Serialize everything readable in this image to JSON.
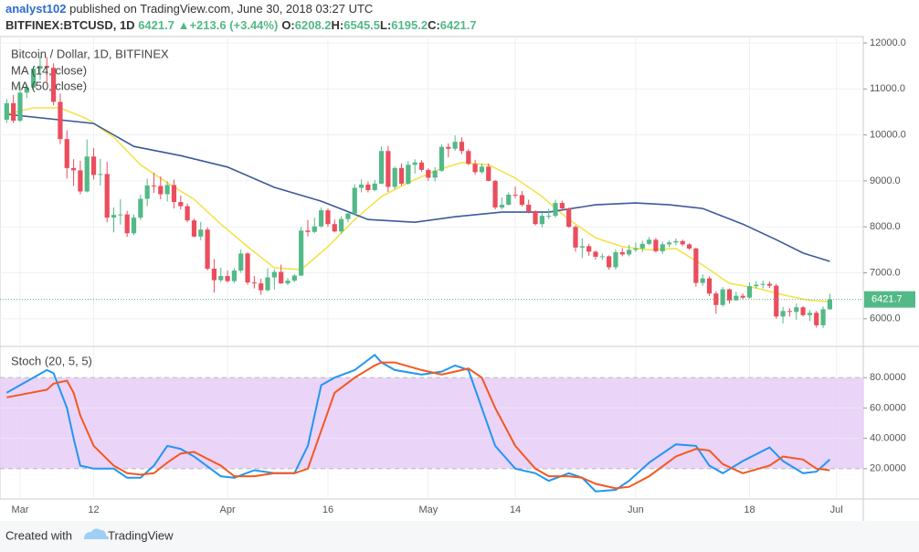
{
  "header": {
    "author": "analyst102",
    "published": "published on TradingView.com, June 30, 2018 03:27 UTC",
    "symbol": "BITFINEX:BTCUSD, 1D",
    "last": "6421.7",
    "arrow": "▲",
    "change": "+213.6 (+3.44%)",
    "ohlc": [
      {
        "label": "O:",
        "value": "6208.2"
      },
      {
        "label": "H:",
        "value": "6545.5"
      },
      {
        "label": "L:",
        "value": "6195.2"
      },
      {
        "label": "C:",
        "value": "6421.7"
      }
    ]
  },
  "footer": {
    "text": "Created with",
    "brand": "TradingView"
  },
  "chart_data": [
    {
      "type": "candlestick",
      "title": "Bitcoin / Dollar, 1D, BITFINEX",
      "up_color": "#53b987",
      "down_color": "#eb4d5c",
      "x": [
        "2018-02-27",
        "2018-02-28",
        "2018-03-01",
        "2018-03-02",
        "2018-03-03",
        "2018-03-04",
        "2018-03-05",
        "2018-03-06",
        "2018-03-07",
        "2018-03-08",
        "2018-03-09",
        "2018-03-10",
        "2018-03-11",
        "2018-03-12",
        "2018-03-13",
        "2018-03-14",
        "2018-03-15",
        "2018-03-16",
        "2018-03-17",
        "2018-03-18",
        "2018-03-19",
        "2018-03-20",
        "2018-03-21",
        "2018-03-22",
        "2018-03-23",
        "2018-03-24",
        "2018-03-25",
        "2018-03-26",
        "2018-03-27",
        "2018-03-28",
        "2018-03-29",
        "2018-03-30",
        "2018-03-31",
        "2018-04-01",
        "2018-04-02",
        "2018-04-03",
        "2018-04-04",
        "2018-04-05",
        "2018-04-06",
        "2018-04-07",
        "2018-04-08",
        "2018-04-09",
        "2018-04-10",
        "2018-04-11",
        "2018-04-12",
        "2018-04-13",
        "2018-04-14",
        "2018-04-15",
        "2018-04-16",
        "2018-04-17",
        "2018-04-18",
        "2018-04-19",
        "2018-04-20",
        "2018-04-21",
        "2018-04-22",
        "2018-04-23",
        "2018-04-24",
        "2018-04-25",
        "2018-04-26",
        "2018-04-27",
        "2018-04-28",
        "2018-04-29",
        "2018-04-30",
        "2018-05-01",
        "2018-05-02",
        "2018-05-03",
        "2018-05-04",
        "2018-05-05",
        "2018-05-06",
        "2018-05-07",
        "2018-05-08",
        "2018-05-09",
        "2018-05-10",
        "2018-05-11",
        "2018-05-12",
        "2018-05-13",
        "2018-05-14",
        "2018-05-15",
        "2018-05-16",
        "2018-05-17",
        "2018-05-18",
        "2018-05-19",
        "2018-05-20",
        "2018-05-21",
        "2018-05-22",
        "2018-05-23",
        "2018-05-24",
        "2018-05-25",
        "2018-05-26",
        "2018-05-27",
        "2018-05-28",
        "2018-05-29",
        "2018-05-30",
        "2018-05-31",
        "2018-06-01",
        "2018-06-02",
        "2018-06-03",
        "2018-06-04",
        "2018-06-05",
        "2018-06-06",
        "2018-06-07",
        "2018-06-08",
        "2018-06-09",
        "2018-06-10",
        "2018-06-11",
        "2018-06-12",
        "2018-06-13",
        "2018-06-14",
        "2018-06-15",
        "2018-06-16",
        "2018-06-17",
        "2018-06-18",
        "2018-06-19",
        "2018-06-20",
        "2018-06-21",
        "2018-06-22",
        "2018-06-23",
        "2018-06-24",
        "2018-06-25",
        "2018-06-26",
        "2018-06-27",
        "2018-06-28",
        "2018-06-29",
        "2018-06-30"
      ],
      "open": [
        10330,
        10690,
        10310,
        10920,
        11030,
        11440,
        11500,
        11460,
        10720,
        9910,
        9280,
        9230,
        8770,
        9530,
        9130,
        9150,
        8200,
        8260,
        8270,
        7860,
        8200,
        8610,
        8900,
        8890,
        8710,
        8910,
        8540,
        8450,
        8140,
        7790,
        7940,
        7090,
        6840,
        6930,
        6820,
        7050,
        7420,
        6790,
        6770,
        6620,
        6900,
        7020,
        6770,
        6830,
        6940,
        7920,
        7890,
        8010,
        8360,
        8060,
        7900,
        8170,
        8290,
        8850,
        8920,
        8800,
        8940,
        9650,
        8870,
        9280,
        8940,
        9350,
        9400,
        9240,
        9070,
        9220,
        9740,
        9700,
        9850,
        9650,
        9370,
        9190,
        9310,
        9000,
        8420,
        8480,
        8700,
        8690,
        8480,
        8340,
        8060,
        8240,
        8240,
        8520,
        8400,
        8000,
        7550,
        7580,
        7460,
        7350,
        7360,
        7120,
        7450,
        7400,
        7500,
        7530,
        7630,
        7720,
        7470,
        7620,
        7660,
        7690,
        7620,
        7530,
        6780,
        6880,
        6550,
        6300,
        6640,
        6400,
        6500,
        6460,
        6710,
        6740,
        6760,
        6720,
        6050,
        6170,
        6150,
        6250,
        6080,
        6130,
        5860,
        6208.2
      ],
      "high": [
        10780,
        10870,
        11050,
        11100,
        11500,
        11700,
        11690,
        11560,
        10900,
        10100,
        9470,
        9440,
        9900,
        9710,
        9480,
        9420,
        8420,
        8600,
        8350,
        8270,
        8700,
        9050,
        9180,
        9100,
        8990,
        9030,
        8680,
        8510,
        8180,
        8110,
        7990,
        7300,
        7110,
        7050,
        7100,
        7510,
        7450,
        6930,
        6870,
        7100,
        7080,
        7180,
        6890,
        6970,
        8000,
        8150,
        8200,
        8420,
        8400,
        8160,
        8230,
        8300,
        8930,
        9030,
        8990,
        9020,
        9750,
        9760,
        9310,
        9380,
        9430,
        9470,
        9450,
        9270,
        9300,
        9790,
        9820,
        9990,
        9950,
        9690,
        9460,
        9380,
        9380,
        9020,
        8640,
        8750,
        8880,
        8780,
        8590,
        8360,
        8300,
        8390,
        8590,
        8570,
        8420,
        8030,
        7750,
        7630,
        7480,
        7420,
        7380,
        7510,
        7540,
        7610,
        7660,
        7700,
        7780,
        7760,
        7680,
        7700,
        7750,
        7720,
        7640,
        7550,
        6970,
        6920,
        6600,
        6690,
        6660,
        6590,
        6550,
        6790,
        6820,
        6830,
        6810,
        6760,
        6260,
        6230,
        6330,
        6280,
        6190,
        6170,
        6270,
        6545.5
      ],
      "low": [
        10260,
        10260,
        10280,
        10800,
        10980,
        11200,
        11150,
        10650,
        9800,
        9050,
        8890,
        8710,
        8750,
        9030,
        8900,
        8100,
        7880,
        8050,
        7780,
        7820,
        8150,
        8450,
        8740,
        8600,
        8550,
        8400,
        8380,
        8100,
        7770,
        7710,
        7050,
        6570,
        6800,
        6790,
        6780,
        7000,
        6740,
        6660,
        6520,
        6600,
        6640,
        6760,
        6730,
        6800,
        6930,
        7790,
        7860,
        7980,
        8000,
        7880,
        7850,
        8100,
        8250,
        8750,
        8750,
        8770,
        8930,
        8760,
        8820,
        8900,
        8920,
        9160,
        9200,
        9000,
        8990,
        9200,
        9510,
        9650,
        9580,
        9340,
        9130,
        9160,
        8990,
        8380,
        8380,
        8470,
        8620,
        8440,
        8290,
        8030,
        7990,
        8170,
        8200,
        8350,
        7980,
        7460,
        7320,
        7370,
        7290,
        7280,
        7070,
        7070,
        7360,
        7360,
        7450,
        7450,
        7600,
        7440,
        7410,
        7560,
        7600,
        7580,
        7500,
        6700,
        6720,
        6500,
        6110,
        6260,
        6330,
        6400,
        6430,
        6440,
        6660,
        6660,
        6670,
        6000,
        5900,
        6050,
        5980,
        6050,
        5950,
        5810,
        5800,
        6195.2
      ],
      "close": [
        10690,
        10310,
        10920,
        11030,
        11440,
        11500,
        11460,
        10720,
        9910,
        9280,
        9230,
        8770,
        9530,
        9130,
        9150,
        8200,
        8260,
        8270,
        7860,
        8200,
        8610,
        8900,
        8890,
        8710,
        8910,
        8540,
        8450,
        8140,
        7790,
        7940,
        7090,
        6840,
        6930,
        6820,
        7050,
        7420,
        6790,
        6770,
        6620,
        6900,
        7020,
        6770,
        6830,
        6940,
        7920,
        7890,
        8010,
        8360,
        8060,
        7900,
        8170,
        8290,
        8850,
        8920,
        8800,
        8940,
        9650,
        8870,
        9280,
        8940,
        9350,
        9400,
        9240,
        9070,
        9220,
        9740,
        9700,
        9850,
        9650,
        9370,
        9190,
        9310,
        9000,
        8420,
        8480,
        8700,
        8690,
        8480,
        8340,
        8060,
        8240,
        8240,
        8520,
        8400,
        8000,
        7550,
        7580,
        7460,
        7350,
        7360,
        7120,
        7450,
        7400,
        7500,
        7530,
        7630,
        7720,
        7470,
        7620,
        7660,
        7690,
        7620,
        7530,
        6780,
        6880,
        6550,
        6300,
        6640,
        6400,
        6500,
        6460,
        6710,
        6740,
        6760,
        6720,
        6050,
        6170,
        6150,
        6250,
        6080,
        6130,
        5860,
        6208.2,
        6421.7
      ],
      "series": [
        {
          "name": "MA (14, close)",
          "color": "#f3e34a",
          "x": [
            "2018-02-27",
            "2018-03-03",
            "2018-03-07",
            "2018-03-11",
            "2018-03-15",
            "2018-03-19",
            "2018-03-23",
            "2018-03-27",
            "2018-03-31",
            "2018-04-04",
            "2018-04-08",
            "2018-04-12",
            "2018-04-16",
            "2018-04-20",
            "2018-04-24",
            "2018-04-28",
            "2018-05-02",
            "2018-05-06",
            "2018-05-10",
            "2018-05-14",
            "2018-05-18",
            "2018-05-22",
            "2018-05-26",
            "2018-05-30",
            "2018-06-03",
            "2018-06-07",
            "2018-06-11",
            "2018-06-15",
            "2018-06-19",
            "2018-06-23",
            "2018-06-27",
            "2018-06-30"
          ],
          "values": [
            10450,
            10590,
            10590,
            10350,
            9950,
            9350,
            8960,
            8600,
            8060,
            7570,
            7110,
            7070,
            7570,
            8160,
            8660,
            8960,
            9220,
            9400,
            9350,
            9060,
            8660,
            8160,
            7760,
            7570,
            7500,
            7530,
            7170,
            6770,
            6670,
            6520,
            6400,
            6370
          ]
        },
        {
          "name": "MA (50, close)",
          "color": "#3c5a9a",
          "x": [
            "2018-02-27",
            "2018-03-12",
            "2018-03-18",
            "2018-03-25",
            "2018-04-01",
            "2018-04-08",
            "2018-04-15",
            "2018-04-22",
            "2018-04-29",
            "2018-05-05",
            "2018-05-12",
            "2018-05-19",
            "2018-05-26",
            "2018-06-01",
            "2018-06-06",
            "2018-06-11",
            "2018-06-17",
            "2018-06-22",
            "2018-06-26",
            "2018-06-30"
          ],
          "values": [
            10450,
            10250,
            9750,
            9550,
            9300,
            8860,
            8560,
            8160,
            8100,
            8220,
            8320,
            8320,
            8480,
            8520,
            8480,
            8400,
            8060,
            7720,
            7430,
            7250
          ]
        }
      ],
      "last_price": {
        "value": 6421.7,
        "label": "6421.7"
      },
      "xlim": [
        "2018-02-26",
        "2018-07-05"
      ],
      "xticks": [
        {
          "value": "2018-03-01",
          "label": "Mar"
        },
        {
          "value": "2018-03-12",
          "label": "12"
        },
        {
          "value": "2018-04-01",
          "label": "Apr"
        },
        {
          "value": "2018-04-16",
          "label": "16"
        },
        {
          "value": "2018-05-01",
          "label": "May"
        },
        {
          "value": "2018-05-14",
          "label": "14"
        },
        {
          "value": "2018-06-01",
          "label": "Jun"
        },
        {
          "value": "2018-06-18",
          "label": "18"
        },
        {
          "value": "2018-07-01",
          "label": "Jul"
        }
      ],
      "ylim": [
        5420,
        12140
      ],
      "yticks": [
        {
          "value": 6000,
          "label": "6000.0"
        },
        {
          "value": 7000,
          "label": "7000.0"
        },
        {
          "value": 8000,
          "label": "8000.0"
        },
        {
          "value": 9000,
          "label": "9000.0"
        },
        {
          "value": 10000,
          "label": "10000.0"
        },
        {
          "value": 11000,
          "label": "11000.0"
        },
        {
          "value": 12000,
          "label": "12000.0"
        }
      ],
      "grid": true
    },
    {
      "type": "line",
      "title": "Stoch (20, 5, 5)",
      "band_color": "#e6cdf7",
      "bands": [
        20,
        80
      ],
      "x": [
        "2018-02-27",
        "2018-03-05",
        "2018-03-06",
        "2018-03-08",
        "2018-03-09",
        "2018-03-10",
        "2018-03-12",
        "2018-03-15",
        "2018-03-17",
        "2018-03-19",
        "2018-03-21",
        "2018-03-23",
        "2018-03-25",
        "2018-03-27",
        "2018-03-31",
        "2018-04-02",
        "2018-04-05",
        "2018-04-08",
        "2018-04-11",
        "2018-04-13",
        "2018-04-15",
        "2018-04-17",
        "2018-04-20",
        "2018-04-23",
        "2018-04-24",
        "2018-04-26",
        "2018-04-30",
        "2018-05-03",
        "2018-05-05",
        "2018-05-07",
        "2018-05-09",
        "2018-05-11",
        "2018-05-14",
        "2018-05-17",
        "2018-05-19",
        "2018-05-22",
        "2018-05-24",
        "2018-05-26",
        "2018-05-29",
        "2018-05-31",
        "2018-06-03",
        "2018-06-07",
        "2018-06-10",
        "2018-06-12",
        "2018-06-14",
        "2018-06-17",
        "2018-06-21",
        "2018-06-23",
        "2018-06-26",
        "2018-06-28",
        "2018-06-30"
      ],
      "series": [
        {
          "name": "%K",
          "color": "#2196f3",
          "values": [
            70,
            85,
            83,
            60,
            40,
            22,
            20,
            20,
            14,
            14,
            22,
            35,
            33,
            28,
            15,
            14,
            19,
            17,
            17,
            35,
            75,
            80,
            85,
            95,
            90,
            85,
            82,
            84,
            88,
            85,
            60,
            35,
            20,
            17,
            12,
            17,
            14,
            5,
            6,
            12,
            24,
            36,
            35,
            22,
            17,
            25,
            34,
            25,
            17,
            18,
            26
          ]
        },
        {
          "name": "%D",
          "color": "#f4581f",
          "values": [
            67,
            72,
            76,
            78,
            70,
            55,
            35,
            22,
            17,
            16,
            17,
            24,
            30,
            31,
            22,
            15,
            15,
            17,
            17,
            20,
            45,
            70,
            80,
            88,
            90,
            90,
            85,
            82,
            84,
            86,
            80,
            60,
            35,
            20,
            15,
            15,
            14,
            10,
            7,
            8,
            15,
            28,
            33,
            32,
            23,
            17,
            22,
            28,
            26,
            20,
            19
          ]
        }
      ],
      "ylim": [
        0,
        100
      ],
      "yticks": [
        {
          "value": 20,
          "label": "20.0000"
        },
        {
          "value": 40,
          "label": "40.0000"
        },
        {
          "value": 60,
          "label": "60.0000"
        },
        {
          "value": 80,
          "label": "80.0000"
        }
      ],
      "grid": true
    }
  ]
}
